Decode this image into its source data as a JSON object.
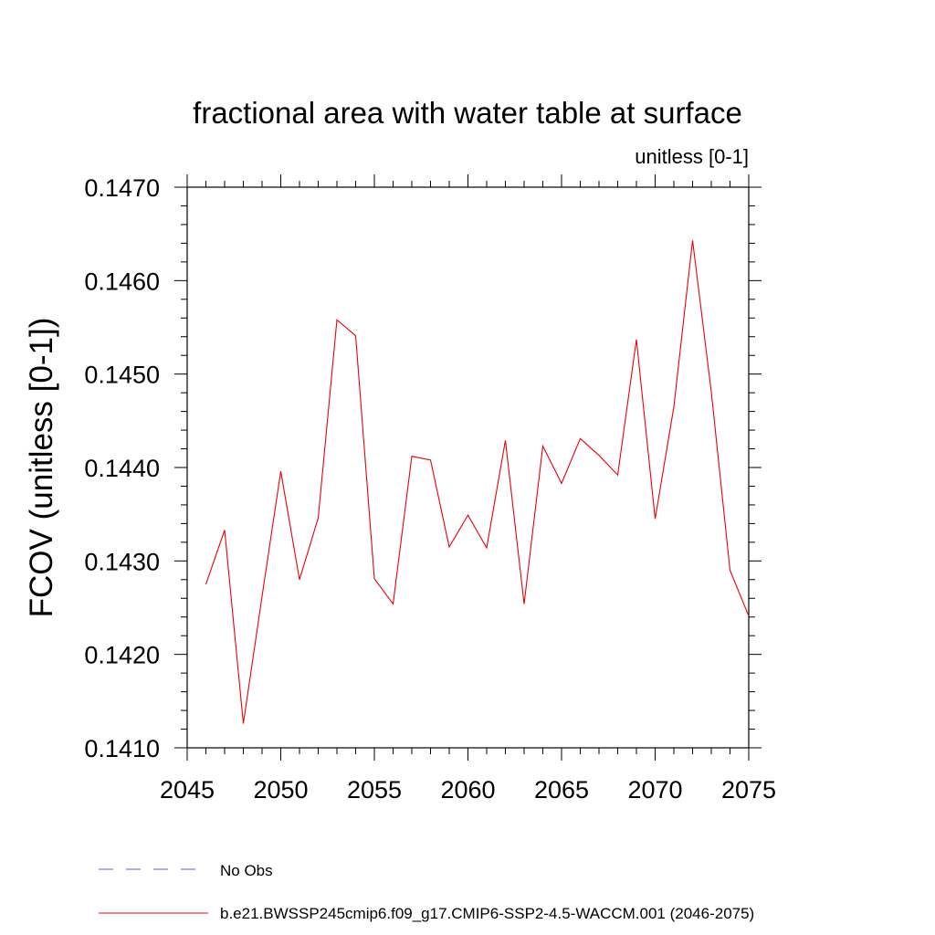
{
  "chart_data": {
    "type": "line",
    "title": "fractional area with water table at surface",
    "units_label": "unitless [0-1]",
    "xlabel": "",
    "ylabel": "FCOV  (unitless [0-1])",
    "xlim": [
      2045,
      2075
    ],
    "ylim": [
      0.141,
      0.147
    ],
    "x_ticks": [
      2045,
      2050,
      2055,
      2060,
      2065,
      2070,
      2075
    ],
    "x_tick_labels": [
      "2045",
      "2050",
      "2055",
      "2060",
      "2065",
      "2070",
      "2075"
    ],
    "y_ticks": [
      0.141,
      0.142,
      0.143,
      0.144,
      0.145,
      0.146,
      0.147
    ],
    "y_tick_labels": [
      "0.1410",
      "0.1420",
      "0.1430",
      "0.1440",
      "0.1450",
      "0.1460",
      "0.1470"
    ],
    "series": [
      {
        "name": "b.e21.BWSSP245cmip6.f09_g17.CMIP6-SSP2-4.5-WACCM.001 (2046-2075)",
        "color": "#e8000b",
        "x": [
          2046,
          2047,
          2048,
          2049,
          2050,
          2051,
          2052,
          2053,
          2054,
          2055,
          2056,
          2057,
          2058,
          2059,
          2060,
          2061,
          2062,
          2063,
          2064,
          2065,
          2066,
          2067,
          2068,
          2069,
          2070,
          2071,
          2072,
          2073,
          2074,
          2075
        ],
        "values": [
          0.14275,
          0.14333,
          0.14126,
          0.14262,
          0.14396,
          0.1428,
          0.14346,
          0.14558,
          0.14541,
          0.14281,
          0.14254,
          0.14412,
          0.14408,
          0.14315,
          0.14349,
          0.14314,
          0.14429,
          0.14254,
          0.14423,
          0.14383,
          0.14431,
          0.14413,
          0.14392,
          0.14537,
          0.14345,
          0.14465,
          0.14643,
          0.14481,
          0.1429,
          0.14241
        ]
      }
    ],
    "legend": [
      {
        "label": "No Obs",
        "color": "#6a5acd",
        "style": "dashed"
      },
      {
        "label": "b.e21.BWSSP245cmip6.f09_g17.CMIP6-SSP2-4.5-WACCM.001 (2046-2075)",
        "color": "#e8000b",
        "style": "solid"
      }
    ]
  }
}
